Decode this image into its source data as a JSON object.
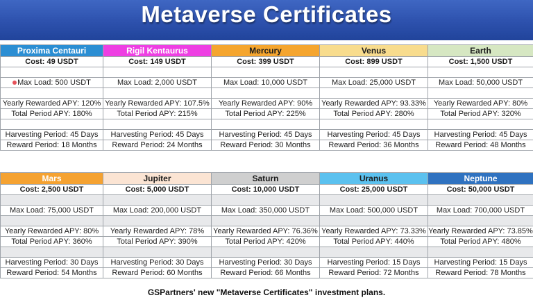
{
  "title": "Metaverse Certificates",
  "caption": "GSPartners' new \"Metaverse Certificates\" investment plans.",
  "tables": [
    {
      "columns": [
        {
          "name": "Proxima Centauri",
          "color": "#2b8ed3",
          "text_color": "#ffffff",
          "cost": "Cost: 49 USDT",
          "max_load": "Max Load: 500 USDT",
          "apy": "Yearly Rewarded APY: 120%",
          "total_apy": "Total Period APY: 180%",
          "harvest": "Harvesting Period: 45 Days",
          "reward": "Reward Period: 18 Months"
        },
        {
          "name": "Rigil Kentaurus",
          "color": "#ee3fe3",
          "text_color": "#ffffff",
          "cost": "Cost: 149 USDT",
          "max_load": "Max Load: 2,000 USDT",
          "apy": "Yearly Rewarded APY: 107.5%",
          "total_apy": "Total Period APY: 215%",
          "harvest": "Harvesting Period: 45 Days",
          "reward": "Reward Period: 24 Months"
        },
        {
          "name": "Mercury",
          "color": "#f5a52e",
          "text_color": "#1c1c1c",
          "cost": "Cost: 399 USDT",
          "max_load": "Max Load: 10,000 USDT",
          "apy": "Yearly Rewarded APY: 90%",
          "total_apy": "Total Period APY: 225%",
          "harvest": "Harvesting Period: 45 Days",
          "reward": "Reward Period: 30 Months"
        },
        {
          "name": "Venus",
          "color": "#f8dc8d",
          "text_color": "#1c1c1c",
          "cost": "Cost: 899 USDT",
          "max_load": "Max Load: 25,000 USDT",
          "apy": "Yearly Rewarded APY: 93.33%",
          "total_apy": "Total Period APY: 280%",
          "harvest": "Harvesting Period: 45 Days",
          "reward": "Reward Period: 36 Months"
        },
        {
          "name": "Earth",
          "color": "#d6e7c2",
          "text_color": "#1c1c1c",
          "cost": "Cost: 1,500 USDT",
          "max_load": "Max Load: 50,000 USDT",
          "apy": "Yearly Rewarded APY: 80%",
          "total_apy": "Total Period APY: 320%",
          "harvest": "Harvesting Period: 45 Days",
          "reward": "Reward Period: 48 Months"
        }
      ]
    },
    {
      "columns": [
        {
          "name": "Mars",
          "color": "#f5a231",
          "text_color": "#ffffff",
          "cost": "Cost: 2,500 USDT",
          "max_load": "Max Load: 75,000 USDT",
          "apy": "Yearly Rewarded APY: 80%",
          "total_apy": "Total Period APY: 360%",
          "harvest": "Harvesting Period: 30 Days",
          "reward": "Reward Period: 54 Months"
        },
        {
          "name": "Jupiter",
          "color": "#fbe4d3",
          "text_color": "#1c1c1c",
          "cost": "Cost: 5,000 USDT",
          "max_load": "Max Load: 200,000 USDT",
          "apy": "Yearly Rewarded APY: 78%",
          "total_apy": "Total Period APY: 390%",
          "harvest": "Harvesting Period: 30 Days",
          "reward": "Reward Period: 60 Months"
        },
        {
          "name": "Saturn",
          "color": "#cfcfcf",
          "text_color": "#1c1c1c",
          "cost": "Cost: 10,000 USDT",
          "max_load": "Max Load: 350,000 USDT",
          "apy": "Yearly Rewarded APY: 76.36%",
          "total_apy": "Total Period APY: 420%",
          "harvest": "Harvesting Period: 30 Days",
          "reward": "Reward Period: 66 Months"
        },
        {
          "name": "Uranus",
          "color": "#5bc1ef",
          "text_color": "#1c1c1c",
          "cost": "Cost: 25,000 USDT",
          "max_load": "Max Load: 500,000 USDT",
          "apy": "Yearly Rewarded APY: 73.33%",
          "total_apy": "Total Period APY: 440%",
          "harvest": "Harvesting Period: 15 Days",
          "reward": "Reward Period: 72 Months"
        },
        {
          "name": "Neptune",
          "color": "#2f72c0",
          "text_color": "#ffffff",
          "cost": "Cost: 50,000 USDT",
          "max_load": "Max Load: 700,000 USDT",
          "apy": "Yearly Rewarded APY: 73.85%",
          "total_apy": "Total Period APY: 480%",
          "harvest": "Harvesting Period: 15 Days",
          "reward": "Reward Period: 78 Months"
        }
      ]
    }
  ]
}
